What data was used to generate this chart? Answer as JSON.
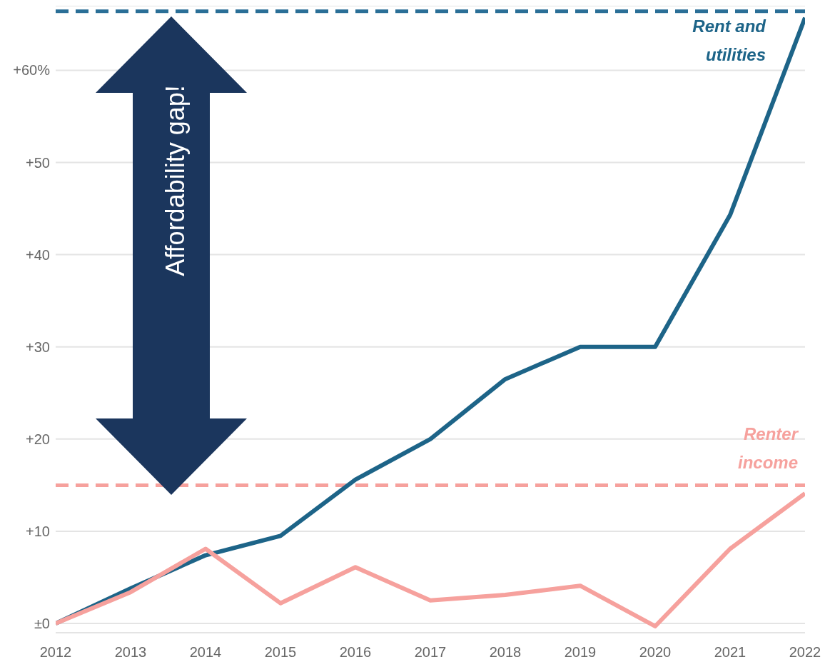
{
  "chart_data": {
    "type": "line",
    "x": [
      2012,
      2013,
      2014,
      2015,
      2016,
      2017,
      2018,
      2019,
      2020,
      2021,
      2022
    ],
    "series": [
      {
        "name": "Rent and utilities",
        "color": "#1d6488",
        "values": [
          0,
          3.8,
          7.4,
          9.5,
          15.6,
          20,
          26.5,
          30,
          30,
          44.3,
          65.7
        ]
      },
      {
        "name": "Renter income",
        "color": "#f6a19d",
        "values": [
          0,
          3.4,
          8.1,
          2.2,
          6.1,
          2.5,
          3.1,
          4.1,
          -0.3,
          8.1,
          14.1
        ]
      }
    ],
    "xlim": [
      2012,
      2022
    ],
    "xticks": [
      2012,
      2013,
      2014,
      2015,
      2016,
      2017,
      2018,
      2019,
      2020,
      2021,
      2022
    ],
    "ylim": [
      -1,
      67
    ],
    "yticks": [
      {
        "value": 0,
        "label": "±0"
      },
      {
        "value": 10,
        "label": "+10"
      },
      {
        "value": 20,
        "label": "+20"
      },
      {
        "value": 30,
        "label": "+30"
      },
      {
        "value": 40,
        "label": "+40"
      },
      {
        "value": 50,
        "label": "+50"
      },
      {
        "value": 60,
        "label": "+60%"
      }
    ],
    "ref_lines": [
      {
        "axis": "y",
        "value": 66.4,
        "color": "#2a6f97",
        "line_style": "dashed"
      },
      {
        "axis": "y",
        "value": 15,
        "color": "#f6a19d",
        "line_style": "dashed"
      }
    ],
    "annotations": [
      "Affordability gap!"
    ],
    "grid": "y",
    "marker": "none",
    "line_style": "solid"
  }
}
